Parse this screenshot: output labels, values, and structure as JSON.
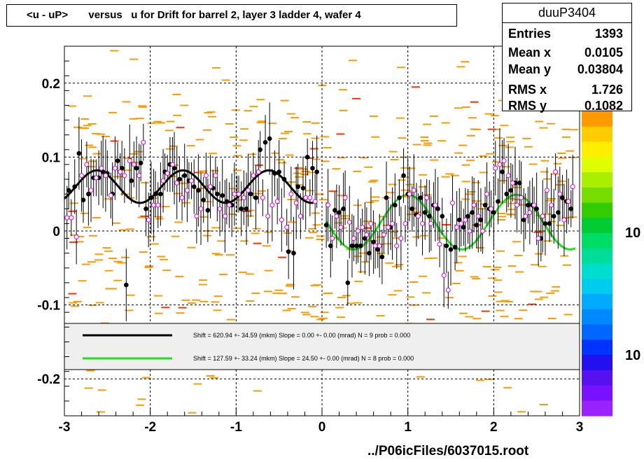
{
  "title": "<u - uP>       versus   u for Drift for barrel 2, layer 3 ladder 4, wafer 4",
  "footer": "../P06icFiles/6037015.root",
  "stats": {
    "name": "duuP3404",
    "rows": [
      {
        "key": "Entries",
        "value": "1393"
      },
      {
        "key": "Mean x",
        "value": "0.0105"
      },
      {
        "key": "Mean y",
        "value": "0.03804"
      },
      {
        "key": "RMS x",
        "value": "1.726"
      },
      {
        "key": "RMS y",
        "value": "0.1082"
      }
    ]
  },
  "legend": {
    "line1": "Shift =   620.94 +- 34.59 (mkm) Slope =     0.00 +- 0.00 (mrad)  N = 9 prob = 0.000",
    "line2": "Shift =   127.59 +- 33.24 (mkm) Slope =    24.50 +- 0.00 (mrad)  N = 8 prob = 0.000"
  },
  "colors": {
    "fit1": "#000000",
    "fit2": "#22dd22",
    "points_black": "#000000",
    "points_open": "#dd00dd",
    "hist_cells": "#ff9900",
    "legend_bg": "#efefef"
  },
  "palette_labels": [
    "10",
    "10"
  ],
  "chart_data": {
    "type": "scatter",
    "xlim": [
      -3,
      3
    ],
    "ylim": [
      -0.25,
      0.25
    ],
    "xticks": [
      "-3",
      "-2",
      "-1",
      "0",
      "1",
      "2",
      "3"
    ],
    "yticks": [
      "-0.2",
      "-0.1",
      "0",
      "0.1",
      "0.2"
    ],
    "grid": true,
    "series": [
      {
        "marker": "filled-circle",
        "x": [
          -2.95,
          -2.88,
          -2.83,
          -2.78,
          -2.72,
          -2.66,
          -2.6,
          -2.55,
          -2.5,
          -2.44,
          -2.38,
          -2.33,
          -2.28,
          -2.22,
          -2.16,
          -2.11,
          -2.05,
          -1.99,
          -1.94,
          -1.88,
          -1.83,
          -1.77,
          -1.72,
          -1.66,
          -1.6,
          -1.55,
          -1.49,
          -1.44,
          -1.38,
          -1.33,
          -1.27,
          -1.22,
          -1.16,
          -1.11,
          -1.05,
          -0.99,
          -0.94,
          -0.88,
          -0.83,
          -0.77,
          -0.72,
          -0.66,
          -0.61,
          -0.55,
          -0.5,
          -0.44,
          -0.39,
          -0.33,
          -0.28,
          -0.22,
          -0.17,
          -0.11,
          -0.06,
          0.05,
          0.1,
          0.15,
          0.2,
          0.25,
          0.3,
          0.35,
          0.4,
          0.45,
          0.5,
          0.55,
          0.6,
          0.65,
          0.7,
          0.75,
          0.8,
          0.85,
          0.9,
          0.95,
          1.0,
          1.05,
          1.1,
          1.15,
          1.2,
          1.25,
          1.3,
          1.35,
          1.4,
          1.45,
          1.5,
          1.55,
          1.6,
          1.65,
          1.7,
          1.75,
          1.8,
          1.85,
          1.9,
          1.95,
          2.0,
          2.05,
          2.1,
          2.15,
          2.2,
          2.25,
          2.3,
          2.35,
          2.4,
          2.45,
          2.5,
          2.55,
          2.6,
          2.65,
          2.7,
          2.75,
          2.8,
          2.85,
          2.9
        ],
        "y": [
          0.055,
          0.06,
          0.105,
          0.042,
          0.05,
          0.072,
          0.072,
          0.08,
          0.078,
          0.05,
          0.095,
          0.085,
          -0.073,
          0.068,
          0.085,
          0.092,
          0.03,
          0.045,
          0.05,
          0.05,
          0.08,
          0.09,
          0.085,
          0.07,
          0.075,
          0.068,
          0.06,
          0.055,
          0.042,
          0.028,
          0.058,
          0.05,
          0.048,
          0.04,
          0.035,
          0.05,
          0.03,
          0.03,
          0.05,
          0.045,
          0.11,
          0.12,
          0.125,
          0.078,
          0.08,
          0.07,
          -0.028,
          -0.03,
          0.06,
          0.058,
          0.1,
          0.085,
          0.08,
          0.008,
          -0.02,
          0.028,
          0.025,
          0.03,
          -0.07,
          -0.02,
          -0.02,
          -0.02,
          -0.01,
          -0.03,
          -0.015,
          -0.025,
          -0.035,
          0.045,
          0.005,
          0.035,
          0.045,
          0.075,
          0.05,
          0.03,
          0.022,
          0.045,
          0.025,
          0.02,
          0.035,
          0.03,
          0.02,
          -0.02,
          -0.025,
          -0.022,
          0.015,
          0.005,
          0.02,
          0.025,
          0.008,
          0.015,
          0.035,
          0.03,
          0.025,
          0.04,
          0.08,
          0.05,
          0.055,
          0.065,
          0.065,
          0.015,
          0.035,
          0.035,
          0.03,
          -0.01,
          0.01,
          0.01,
          0.02,
          0.025,
          0.045,
          0.04,
          0.03
        ]
      },
      {
        "marker": "open-circle",
        "x": [
          -2.97,
          -2.92,
          -2.86,
          -2.8,
          -2.74,
          -2.69,
          -2.63,
          -2.57,
          -2.52,
          -2.46,
          -2.41,
          -2.35,
          -2.3,
          -2.24,
          -2.19,
          -2.13,
          -2.08,
          -2.02,
          -1.96,
          -1.91,
          -1.85,
          -1.8,
          -1.74,
          -1.69,
          -1.63,
          -1.57,
          -1.52,
          -1.46,
          -1.41,
          -1.35,
          -1.3,
          -1.24,
          -1.19,
          -1.13,
          -1.08,
          -1.02,
          -0.97,
          -0.91,
          -0.86,
          -0.8,
          -0.74,
          -0.69,
          -0.63,
          -0.58,
          -0.52,
          -0.47,
          -0.41,
          -0.36,
          -0.3,
          -0.25,
          -0.19,
          -0.14,
          -0.08,
          0.07,
          0.12,
          0.17,
          0.22,
          0.27,
          0.32,
          0.37,
          0.42,
          0.47,
          0.52,
          0.57,
          0.62,
          0.67,
          0.72,
          0.77,
          0.82,
          0.87,
          0.92,
          0.97,
          1.02,
          1.07,
          1.12,
          1.17,
          1.22,
          1.27,
          1.32,
          1.37,
          1.42,
          1.47,
          1.52,
          1.57,
          1.62,
          1.67,
          1.72,
          1.77,
          1.82,
          1.87,
          1.92,
          1.97,
          2.02,
          2.07,
          2.12,
          2.17,
          2.22,
          2.27,
          2.32,
          2.37,
          2.42,
          2.47,
          2.52,
          2.57,
          2.62,
          2.67,
          2.72,
          2.77,
          2.82,
          2.87,
          2.92
        ],
        "y": [
          0.018,
          0.018,
          -0.008,
          0.075,
          0.09,
          0.055,
          0.072,
          0.085,
          0.075,
          0.048,
          0.085,
          0.08,
          0.075,
          0.095,
          0.09,
          0.075,
          0.12,
          0.015,
          0.035,
          0.035,
          0.068,
          0.078,
          0.09,
          0.065,
          0.045,
          0.055,
          0.068,
          0.02,
          0.03,
          0.075,
          0.06,
          0.075,
          0.03,
          0.02,
          0.035,
          0.05,
          0.05,
          0.045,
          0.055,
          0.075,
          0.08,
          0.045,
          0.02,
          0.035,
          0.04,
          0.015,
          0.005,
          0.05,
          0.038,
          0.02,
          0.045,
          0.045,
          0.04,
          0.035,
          -0.01,
          0.02,
          0.005,
          0.045,
          0.012,
          -0.01,
          0.0,
          0.005,
          -0.005,
          0.01,
          -0.02,
          -0.02,
          -0.005,
          0.005,
          0.01,
          -0.02,
          -0.01,
          0.01,
          0.05,
          0.055,
          0.02,
          0.01,
          0.045,
          0.01,
          0.035,
          -0.018,
          -0.06,
          -0.08,
          0.038,
          0.005,
          0.01,
          0.015,
          0.0,
          0.035,
          0.02,
          0.0,
          0.05,
          0.03,
          0.085,
          0.09,
          0.095,
          0.075,
          0.065,
          0.035,
          0.045,
          0.02,
          0.025,
          0.035,
          -0.01,
          0.02,
          0.055,
          0.035,
          0.08,
          0.05,
          0.015,
          0.04,
          0.06
        ]
      }
    ],
    "fits": [
      {
        "x_range": [
          -3.0,
          -0.1
        ],
        "offset": 0.06,
        "amplitude": 0.022,
        "period": 1.0,
        "phase_x": -2.62
      },
      {
        "x_range": [
          0.05,
          2.95
        ],
        "offset": 0.012,
        "amplitude": 0.037,
        "period": 1.26,
        "phase_x": 1.0
      }
    ]
  }
}
